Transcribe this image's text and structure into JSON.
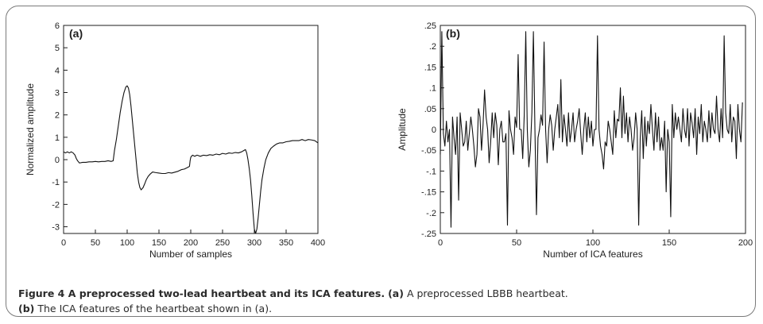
{
  "chart_data": [
    {
      "type": "line",
      "panel_label": "(a)",
      "xlabel": "Number of samples",
      "ylabel": "Normalized amplitude",
      "xlim": [
        0,
        400
      ],
      "ylim": [
        -3.3,
        6
      ],
      "x_ticks": [
        0,
        50,
        100,
        150,
        200,
        250,
        300,
        350,
        400
      ],
      "y_ticks": [
        -3,
        -2,
        -1,
        0,
        1,
        2,
        3,
        4,
        5,
        6
      ],
      "x": [
        0,
        3,
        6,
        9,
        12,
        15,
        18,
        20,
        22,
        25,
        30,
        35,
        40,
        45,
        50,
        55,
        60,
        65,
        70,
        75,
        78,
        80,
        83,
        86,
        89,
        92,
        95,
        98,
        100,
        102,
        104,
        106,
        108,
        110,
        112,
        114,
        116,
        118,
        120,
        122,
        125,
        128,
        130,
        133,
        136,
        140,
        145,
        150,
        155,
        160,
        165,
        170,
        175,
        180,
        185,
        190,
        195,
        198,
        199,
        200,
        201,
        203,
        206,
        210,
        215,
        220,
        225,
        230,
        235,
        240,
        245,
        250,
        255,
        260,
        265,
        270,
        275,
        280,
        283,
        286,
        288,
        290,
        292,
        294,
        296,
        298,
        300,
        302,
        304,
        306,
        308,
        310,
        312,
        315,
        318,
        322,
        326,
        330,
        335,
        340,
        345,
        350,
        355,
        360,
        365,
        370,
        375,
        380,
        385,
        390,
        395,
        400
      ],
      "values": [
        0.35,
        0.3,
        0.35,
        0.3,
        0.35,
        0.3,
        0.2,
        0.05,
        -0.05,
        -0.15,
        -0.12,
        -0.12,
        -0.1,
        -0.1,
        -0.08,
        -0.1,
        -0.08,
        -0.08,
        -0.05,
        -0.08,
        -0.05,
        0.4,
        0.9,
        1.5,
        2.1,
        2.6,
        3.0,
        3.25,
        3.3,
        3.2,
        2.9,
        2.4,
        1.8,
        1.2,
        0.6,
        0.0,
        -0.6,
        -1.0,
        -1.25,
        -1.35,
        -1.25,
        -1.05,
        -0.9,
        -0.75,
        -0.65,
        -0.55,
        -0.58,
        -0.6,
        -0.62,
        -0.62,
        -0.58,
        -0.6,
        -0.56,
        -0.52,
        -0.45,
        -0.42,
        -0.35,
        -0.3,
        -0.05,
        0.1,
        0.15,
        0.2,
        0.15,
        0.2,
        0.15,
        0.2,
        0.18,
        0.22,
        0.2,
        0.25,
        0.22,
        0.28,
        0.25,
        0.3,
        0.28,
        0.32,
        0.3,
        0.35,
        0.4,
        0.45,
        0.3,
        0.0,
        -0.4,
        -0.9,
        -1.6,
        -2.4,
        -3.1,
        -3.3,
        -3.1,
        -2.6,
        -2.0,
        -1.4,
        -0.9,
        -0.4,
        0.0,
        0.3,
        0.5,
        0.6,
        0.7,
        0.75,
        0.75,
        0.8,
        0.82,
        0.85,
        0.85,
        0.85,
        0.9,
        0.85,
        0.9,
        0.88,
        0.85,
        0.75
      ]
    },
    {
      "type": "line",
      "panel_label": "(b)",
      "xlabel": "Number of ICA features",
      "ylabel": "Amplitude",
      "xlim": [
        0,
        200
      ],
      "ylim": [
        -0.25,
        0.25
      ],
      "x_ticks": [
        0,
        50,
        100,
        150,
        200
      ],
      "y_ticks": [
        -0.25,
        -0.2,
        -0.15,
        -0.1,
        -0.05,
        0,
        0.05,
        0.1,
        0.15,
        0.2,
        0.25
      ],
      "x_start": 0,
      "x_step": 1,
      "values": [
        -0.06,
        0.235,
        -0.01,
        -0.04,
        0.02,
        -0.03,
        0.0,
        -0.235,
        0.03,
        -0.02,
        -0.06,
        0.03,
        -0.17,
        0.04,
        0.0,
        -0.04,
        -0.03,
        0.02,
        -0.05,
        -0.01,
        0.03,
        0.0,
        -0.04,
        -0.09,
        -0.06,
        0.05,
        0.03,
        -0.05,
        0.01,
        0.095,
        0.03,
        0.0,
        -0.08,
        -0.03,
        0.04,
        -0.02,
        0.04,
        0.01,
        -0.085,
        0.0,
        0.02,
        -0.03,
        -0.03,
        -0.01,
        -0.23,
        0.045,
        0.0,
        -0.02,
        -0.06,
        0.03,
        0.005,
        0.18,
        0.0,
        0.0,
        -0.07,
        0.035,
        0.235,
        0.0,
        -0.09,
        -0.05,
        0.04,
        0.235,
        0.0,
        -0.205,
        -0.02,
        0.0,
        0.035,
        0.01,
        0.21,
        0.0,
        -0.08,
        0.0,
        0.035,
        0.01,
        -0.05,
        0.0,
        0.03,
        0.06,
        -0.02,
        0.12,
        -0.03,
        0.035,
        0.0,
        -0.04,
        0.04,
        -0.03,
        0.0,
        0.04,
        -0.03,
        0.0,
        0.02,
        0.05,
        -0.01,
        -0.06,
        0.0,
        0.04,
        -0.03,
        0.03,
        -0.02,
        0.02,
        -0.04,
        0.0,
        0.0,
        0.225,
        0.0,
        -0.04,
        -0.06,
        -0.095,
        -0.03,
        -0.04,
        0.02,
        0.0,
        -0.03,
        -0.06,
        0.045,
        -0.02,
        0.025,
        0.02,
        0.1,
        -0.02,
        0.08,
        -0.01,
        0.04,
        -0.03,
        0.03,
        0.0,
        -0.05,
        -0.02,
        0.04,
        0.0,
        -0.23,
        -0.02,
        0.045,
        -0.07,
        0.03,
        -0.04,
        0.02,
        -0.01,
        0.06,
        0.0,
        -0.05,
        0.04,
        -0.03,
        0.03,
        -0.05,
        -0.02,
        -0.05,
        0.02,
        -0.15,
        0.0,
        -0.03,
        -0.21,
        0.06,
        -0.02,
        0.04,
        0.0,
        0.03,
        0.0,
        -0.03,
        0.05,
        0.0,
        -0.02,
        0.05,
        -0.04,
        0.04,
        0.015,
        -0.02,
        0.05,
        -0.06,
        0.03,
        -0.01,
        0.06,
        -0.03,
        0.02,
        0.0,
        -0.03,
        0.045,
        -0.02,
        0.04,
        0.0,
        -0.01,
        0.08,
        0.0,
        -0.03,
        0.05,
        -0.02,
        0.225,
        0.04,
        0.0,
        -0.01,
        0.06,
        -0.03,
        0.03,
        0.02,
        -0.07,
        0.06,
        0.0,
        -0.03,
        0.065
      ]
    }
  ],
  "caption": {
    "title": "Figure 4 A preprocessed two-lead heartbeat and its ICA features.",
    "part_a_label": "(a)",
    "part_a_text": " A preprocessed LBBB heartbeat.",
    "part_b_label": "(b)",
    "part_b_text": " The ICA features of the heartbeat shown in (a)."
  }
}
